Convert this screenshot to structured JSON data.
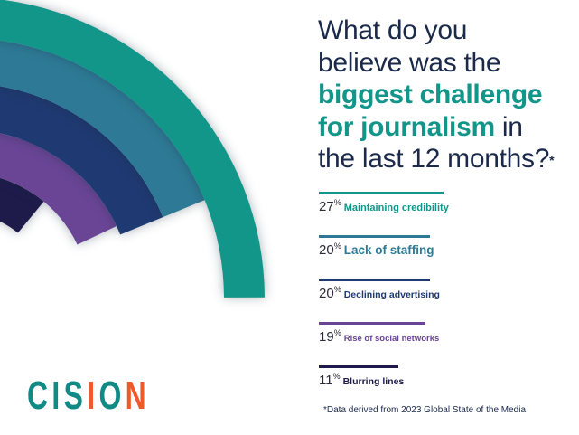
{
  "title": {
    "line1": "What do you",
    "line2": "believe was the",
    "highlight1": "biggest challenge",
    "highlight2": "for journalism",
    "rest2": " in",
    "line5": "the last 12 months?",
    "asterisk": "*"
  },
  "chart_data": {
    "type": "radial-bar",
    "title": "What do you believe was the biggest challenge for journalism in the last 12 months?*",
    "unit": "%",
    "categories": [
      "Maintaining credibility",
      "Lack of staffing",
      "Declining advertising",
      "Rise of social networks",
      "Blurring lines"
    ],
    "values": [
      27,
      20,
      20,
      19,
      11
    ],
    "colors": [
      "#13968a",
      "#2e7a96",
      "#1f3a72",
      "#6a4596",
      "#1e1b4b"
    ]
  },
  "legend": [
    {
      "pct": "27",
      "unit": "%",
      "label": "Maintaining credibility"
    },
    {
      "pct": "20",
      "unit": "%",
      "label": "Lack of staffing"
    },
    {
      "pct": "20",
      "unit": "%",
      "label": "Declining advertising"
    },
    {
      "pct": "19",
      "unit": "%",
      "label": "Rise of social networks"
    },
    {
      "pct": "11",
      "unit": "%",
      "label": "Blurring lines"
    }
  ],
  "footnote": "*Data derived from 2023 Global State of the Media",
  "logo": {
    "text": "CISION",
    "colors": [
      "#0f8a84",
      "#f05a28"
    ]
  }
}
